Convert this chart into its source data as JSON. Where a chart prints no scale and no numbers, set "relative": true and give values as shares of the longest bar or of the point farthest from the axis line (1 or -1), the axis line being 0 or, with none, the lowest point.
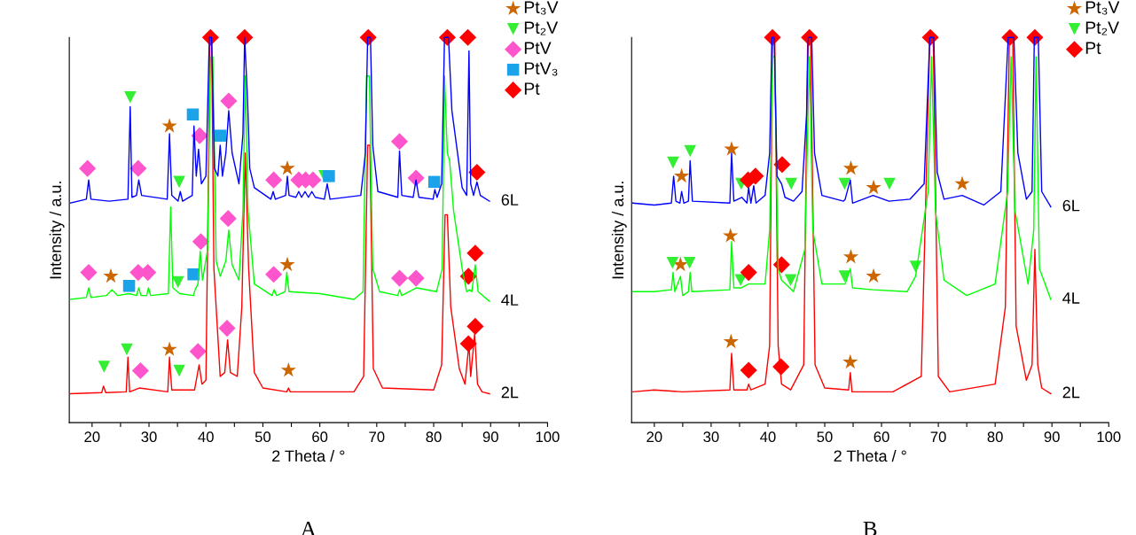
{
  "chart_data": [
    {
      "type": "line",
      "relative": true,
      "xlabel": "2 Theta / °",
      "ylabel": "Intensity / a.u.",
      "xlim": [
        16,
        100
      ],
      "xticks": [
        20,
        {
          "value": 25,
          "label": null
        },
        30,
        {
          "value": 35,
          "label": null
        },
        40,
        {
          "value": 45,
          "label": null
        },
        50,
        {
          "value": 55,
          "label": null
        },
        60,
        {
          "value": 65,
          "label": null
        },
        70,
        {
          "value": 75,
          "label": null
        },
        80,
        {
          "value": 85,
          "label": null
        },
        90,
        {
          "value": 95,
          "label": null
        },
        100
      ],
      "tick_labels": "x",
      "legend": "top right",
      "annotations": [
        "A"
      ],
      "series": [
        {
          "name": "2L",
          "color": "#ff0000",
          "x": [
            16.2,
            21.7,
            22.0,
            22.4,
            26.0,
            26.3,
            26.6,
            28.3,
            33.3,
            33.6,
            34.0,
            35.5,
            38.0,
            38.8,
            39.3,
            40.0,
            40.4,
            40.7,
            41.0,
            41.4,
            42.5,
            43.3,
            43.8,
            44.3,
            45.5,
            46.3,
            46.9,
            47.5,
            48.5,
            50,
            54.2,
            54.5,
            54.8,
            66,
            67.7,
            68.4,
            68.8,
            69.4,
            71,
            80,
            81.4,
            82.0,
            82.4,
            83.0,
            84.5,
            85.5,
            86.2,
            86.5,
            87.2,
            87.7,
            88.5,
            89.8
          ],
          "values": [
            0.075,
            0.078,
            0.095,
            0.078,
            0.08,
            0.17,
            0.08,
            0.09,
            0.08,
            0.17,
            0.085,
            0.085,
            0.085,
            0.15,
            0.1,
            0.11,
            0.6,
            1,
            1,
            0.4,
            0.12,
            0.13,
            0.215,
            0.13,
            0.12,
            0.3,
            0.7,
            0.4,
            0.13,
            0.09,
            0.08,
            0.09,
            0.08,
            0.08,
            0.12,
            0.72,
            0.72,
            0.14,
            0.09,
            0.085,
            0.15,
            0.54,
            0.54,
            0.3,
            0.14,
            0.1,
            0.205,
            0.12,
            0.23,
            0.1,
            0.08,
            0.075
          ]
        },
        {
          "name": "4L",
          "color": "#00ff00",
          "x": [
            16.2,
            19.0,
            19.4,
            19.8,
            22.5,
            23.5,
            24.5,
            26.5,
            27.8,
            28.2,
            28.6,
            29.6,
            29.9,
            30.3,
            33.4,
            33.8,
            34.2,
            35.4,
            37.8,
            38.1,
            38.6,
            39.0,
            39.4,
            40.3,
            40.8,
            41.2,
            41.8,
            42.5,
            43.5,
            44.0,
            44.6,
            45.8,
            46.5,
            46.9,
            47.4,
            48.5,
            51.6,
            52.0,
            52.4,
            53.9,
            54.2,
            54.6,
            60,
            66,
            67.6,
            68.2,
            68.7,
            69.3,
            70.5,
            73.7,
            74.0,
            74.4,
            77.0,
            80.5,
            81.5,
            81.9,
            82.4,
            82.8,
            83.5,
            85.0,
            85.8,
            86.3,
            86.7,
            87.3,
            87.8,
            89.8
          ],
          "values": [
            0.32,
            0.325,
            0.35,
            0.325,
            0.33,
            0.345,
            0.33,
            0.335,
            0.33,
            0.35,
            0.33,
            0.33,
            0.35,
            0.33,
            0.335,
            0.56,
            0.35,
            0.335,
            0.33,
            0.345,
            0.36,
            0.445,
            0.37,
            0.45,
            0.95,
            0.95,
            0.42,
            0.38,
            0.42,
            0.5,
            0.41,
            0.37,
            0.55,
            0.9,
            0.55,
            0.36,
            0.33,
            0.345,
            0.33,
            0.34,
            0.39,
            0.34,
            0.335,
            0.32,
            0.34,
            0.9,
            0.9,
            0.4,
            0.34,
            0.33,
            0.345,
            0.33,
            0.35,
            0.34,
            0.4,
            0.9,
            0.7,
            0.68,
            0.55,
            0.4,
            0.34,
            0.345,
            0.34,
            0.41,
            0.34,
            0.315
          ]
        },
        {
          "name": "6L",
          "color": "#0000ff",
          "x": [
            16.2,
            19.0,
            19.4,
            19.8,
            23,
            26.3,
            26.7,
            27.0,
            27.8,
            28.2,
            28.7,
            33.2,
            33.6,
            34.0,
            35.1,
            35.5,
            35.9,
            37.6,
            37.9,
            38.3,
            38.7,
            39.2,
            40.0,
            40.6,
            41.0,
            41.5,
            42.1,
            42.5,
            42.9,
            43.5,
            44.0,
            44.6,
            45.8,
            46.5,
            46.8,
            47.3,
            47.7,
            48.5,
            51.4,
            51.8,
            52.2,
            54.0,
            54.3,
            54.6,
            55.8,
            56.3,
            56.8,
            57.4,
            58.0,
            58.6,
            59.2,
            60.8,
            61.3,
            61.8,
            67.2,
            68.0,
            68.4,
            68.9,
            69.3,
            70.2,
            73.7,
            74.0,
            74.4,
            76.4,
            76.9,
            77.4,
            79.9,
            80.2,
            80.6,
            81.4,
            81.9,
            82.6,
            83.2,
            85.0,
            85.8,
            86.2,
            86.5,
            87.0,
            87.6,
            88.2,
            89.8
          ],
          "values": [
            0.57,
            0.58,
            0.63,
            0.58,
            0.575,
            0.58,
            0.82,
            0.585,
            0.59,
            0.63,
            0.59,
            0.58,
            0.75,
            0.59,
            0.575,
            0.6,
            0.575,
            0.59,
            0.77,
            0.64,
            0.71,
            0.62,
            0.64,
            1,
            1,
            0.66,
            0.64,
            0.72,
            0.64,
            0.7,
            0.81,
            0.7,
            0.62,
            0.75,
            1,
            0.84,
            0.66,
            0.61,
            0.58,
            0.6,
            0.58,
            0.59,
            0.64,
            0.59,
            0.585,
            0.6,
            0.585,
            0.6,
            0.585,
            0.6,
            0.585,
            0.58,
            0.62,
            0.58,
            0.59,
            0.7,
            1,
            1,
            0.72,
            0.6,
            0.585,
            0.705,
            0.59,
            0.585,
            0.63,
            0.585,
            0.58,
            0.605,
            0.585,
            0.62,
            1,
            1,
            0.81,
            0.61,
            0.59,
            0.965,
            0.62,
            0.59,
            0.625,
            0.59,
            0.575
          ]
        },
        {
          "type": "scatter",
          "name": "Pt₃V",
          "color": "#cc6600",
          "marker": "star",
          "x": [
            33.6,
            54.3,
            23.3,
            54.3,
            33.6,
            54.5
          ],
          "values": [
            0.77,
            0.66,
            0.38,
            0.41,
            0.19,
            0.136
          ]
        },
        {
          "type": "scatter",
          "name": "Pt₂V",
          "color": "#33ee33",
          "marker": "triangle",
          "x": [
            26.7,
            35.3,
            60.8,
            35.1,
            22.1,
            26.1,
            35.3
          ],
          "values": [
            0.845,
            0.625,
            0.64,
            0.365,
            0.145,
            0.19,
            0.135
          ]
        },
        {
          "type": "scatter",
          "name": "PtV",
          "color": "#ff55cc",
          "marker": "diamond",
          "x": [
            19.2,
            28.1,
            38.9,
            44.0,
            51.9,
            56.3,
            57.5,
            58.8,
            74.0,
            76.9,
            19.4,
            28.1,
            29.8,
            39.1,
            43.9,
            51.9,
            74.0,
            76.9,
            28.5,
            38.6,
            43.7
          ],
          "values": [
            0.66,
            0.66,
            0.745,
            0.835,
            0.63,
            0.63,
            0.63,
            0.63,
            0.73,
            0.635,
            0.39,
            0.39,
            0.39,
            0.47,
            0.53,
            0.385,
            0.375,
            0.375,
            0.135,
            0.185,
            0.245
          ]
        },
        {
          "type": "scatter",
          "name": "PtV₃",
          "color": "#1aa3e8",
          "marker": "square",
          "x": [
            37.7,
            42.5,
            61.6,
            80.1,
            26.5,
            37.8
          ],
          "values": [
            0.8,
            0.745,
            0.64,
            0.625,
            0.355,
            0.385
          ]
        },
        {
          "type": "scatter",
          "name": "Pt",
          "color": "#ff0000",
          "marker": "diamond",
          "x": [
            40.8,
            46.8,
            68.5,
            82.4,
            86.0,
            87.6,
            86.1,
            87.3,
            86.1,
            87.3
          ],
          "values": [
            1,
            1,
            1,
            1,
            1,
            0.65,
            0.38,
            0.44,
            0.205,
            0.25
          ]
        }
      ]
    },
    {
      "type": "line",
      "relative": true,
      "xlabel": "2 Theta / °",
      "ylabel": "Intensity / a.u.",
      "xlim": [
        16,
        100
      ],
      "xticks": [
        20,
        {
          "value": 25,
          "label": null
        },
        30,
        {
          "value": 35,
          "label": null
        },
        40,
        {
          "value": 45,
          "label": null
        },
        50,
        {
          "value": 55,
          "label": null
        },
        60,
        {
          "value": 65,
          "label": null
        },
        70,
        {
          "value": 75,
          "label": null
        },
        80,
        {
          "value": 85,
          "label": null
        },
        90,
        {
          "value": 95,
          "label": null
        },
        100
      ],
      "tick_labels": "x",
      "legend": "top right",
      "annotations": [
        "B"
      ],
      "series": [
        {
          "name": "2L",
          "color": "#ff0000",
          "x": [
            16.2,
            20,
            25,
            33.3,
            33.6,
            34.0,
            36.3,
            36.6,
            37.0,
            39.5,
            40.3,
            40.8,
            41.2,
            41.8,
            42.4,
            44,
            46.3,
            47.0,
            47.5,
            48.3,
            50,
            54.2,
            54.5,
            54.8,
            62,
            67.0,
            68.5,
            69.1,
            70.0,
            72,
            80,
            81.8,
            82.5,
            83.1,
            83.7,
            85.5,
            86.5,
            87.0,
            87.5,
            88.2,
            89.8
          ],
          "values": [
            0.08,
            0.085,
            0.08,
            0.085,
            0.18,
            0.085,
            0.085,
            0.1,
            0.085,
            0.1,
            0.2,
            1,
            1,
            0.2,
            0.1,
            0.085,
            0.15,
            1,
            1,
            0.15,
            0.09,
            0.085,
            0.13,
            0.08,
            0.08,
            0.12,
            1,
            1,
            0.12,
            0.08,
            0.1,
            0.3,
            1,
            1,
            0.25,
            0.11,
            0.15,
            0.45,
            0.15,
            0.09,
            0.075
          ]
        },
        {
          "name": "4L",
          "color": "#00ff00",
          "x": [
            16.2,
            20,
            23.0,
            23.3,
            23.6,
            24.6,
            25.0,
            26.0,
            26.3,
            26.6,
            33.3,
            33.6,
            34.0,
            35.3,
            36.6,
            39.5,
            40.3,
            40.8,
            41.2,
            41.8,
            42.4,
            44.5,
            46.5,
            47.3,
            47.9,
            49.5,
            53.6,
            54.5,
            54.9,
            58.5,
            64.5,
            66.0,
            68.2,
            68.8,
            69.5,
            71,
            75,
            80,
            82.2,
            82.8,
            83.5,
            85.8,
            86.8,
            87.2,
            87.8,
            89.8
          ],
          "values": [
            0.34,
            0.34,
            0.345,
            0.39,
            0.34,
            0.38,
            0.33,
            0.34,
            0.39,
            0.34,
            0.345,
            0.47,
            0.35,
            0.35,
            0.36,
            0.36,
            0.5,
            0.95,
            0.95,
            0.4,
            0.37,
            0.34,
            0.45,
            0.95,
            0.5,
            0.36,
            0.36,
            0.4,
            0.35,
            0.345,
            0.34,
            0.38,
            0.6,
            0.95,
            0.55,
            0.37,
            0.33,
            0.36,
            0.6,
            0.95,
            0.55,
            0.36,
            0.5,
            0.95,
            0.4,
            0.32
          ]
        },
        {
          "name": "6L",
          "color": "#0000ff",
          "x": [
            16.2,
            20,
            23.0,
            23.4,
            23.8,
            24.5,
            24.8,
            25.2,
            26.0,
            26.3,
            26.7,
            33.3,
            33.6,
            34.0,
            35.4,
            36.3,
            36.6,
            37.0,
            37.5,
            37.9,
            39.5,
            40.3,
            40.7,
            41.1,
            41.6,
            42.4,
            43.0,
            44.5,
            46.0,
            46.8,
            47.1,
            47.7,
            48.2,
            49.5,
            53.3,
            53.6,
            54.5,
            54.9,
            58.5,
            61.3,
            65.0,
            67.5,
            68.5,
            69.2,
            69.8,
            71,
            74.2,
            78,
            81.0,
            82.3,
            83.3,
            84.0,
            85.5,
            86.5,
            86.9,
            87.6,
            88.2,
            89.8
          ],
          "values": [
            0.57,
            0.565,
            0.57,
            0.64,
            0.575,
            0.57,
            0.6,
            0.57,
            0.575,
            0.68,
            0.575,
            0.57,
            0.7,
            0.575,
            0.585,
            0.57,
            0.61,
            0.57,
            0.615,
            0.57,
            0.59,
            0.7,
            1,
            1,
            0.64,
            0.62,
            0.585,
            0.575,
            0.6,
            0.8,
            1,
            1,
            0.7,
            0.59,
            0.575,
            0.58,
            0.63,
            0.57,
            0.59,
            0.575,
            0.58,
            0.62,
            1,
            1,
            0.65,
            0.58,
            0.59,
            0.565,
            0.6,
            1,
            1,
            0.7,
            0.58,
            0.6,
            1,
            1,
            0.6,
            0.56
          ]
        },
        {
          "type": "scatter",
          "name": "Pt₃V",
          "color": "#cc6600",
          "marker": "star",
          "x": [
            24.8,
            33.6,
            54.6,
            58.6,
            74.2,
            24.6,
            33.4,
            54.6,
            58.6,
            33.5,
            54.5
          ],
          "values": [
            0.64,
            0.71,
            0.66,
            0.61,
            0.62,
            0.41,
            0.485,
            0.43,
            0.38,
            0.21,
            0.157
          ]
        },
        {
          "type": "scatter",
          "name": "Pt₂V",
          "color": "#33ee33",
          "marker": "triangle",
          "x": [
            23.3,
            26.3,
            35.3,
            44.1,
            53.5,
            61.4,
            23.2,
            26.2,
            35.2,
            44.0,
            53.5,
            66.0
          ],
          "values": [
            0.675,
            0.705,
            0.62,
            0.62,
            0.62,
            0.62,
            0.415,
            0.415,
            0.37,
            0.37,
            0.38,
            0.405
          ]
        },
        {
          "type": "scatter",
          "name": "Pt",
          "color": "#ff0000",
          "marker": "diamond",
          "x": [
            36.5,
            37.8,
            42.5,
            40.8,
            47.3,
            68.6,
            82.6,
            87.0,
            36.6,
            42.4,
            36.6,
            42.3
          ],
          "values": [
            0.63,
            0.64,
            0.67,
            1,
            1,
            1,
            1,
            1,
            0.39,
            0.41,
            0.136,
            0.145
          ]
        }
      ]
    }
  ]
}
